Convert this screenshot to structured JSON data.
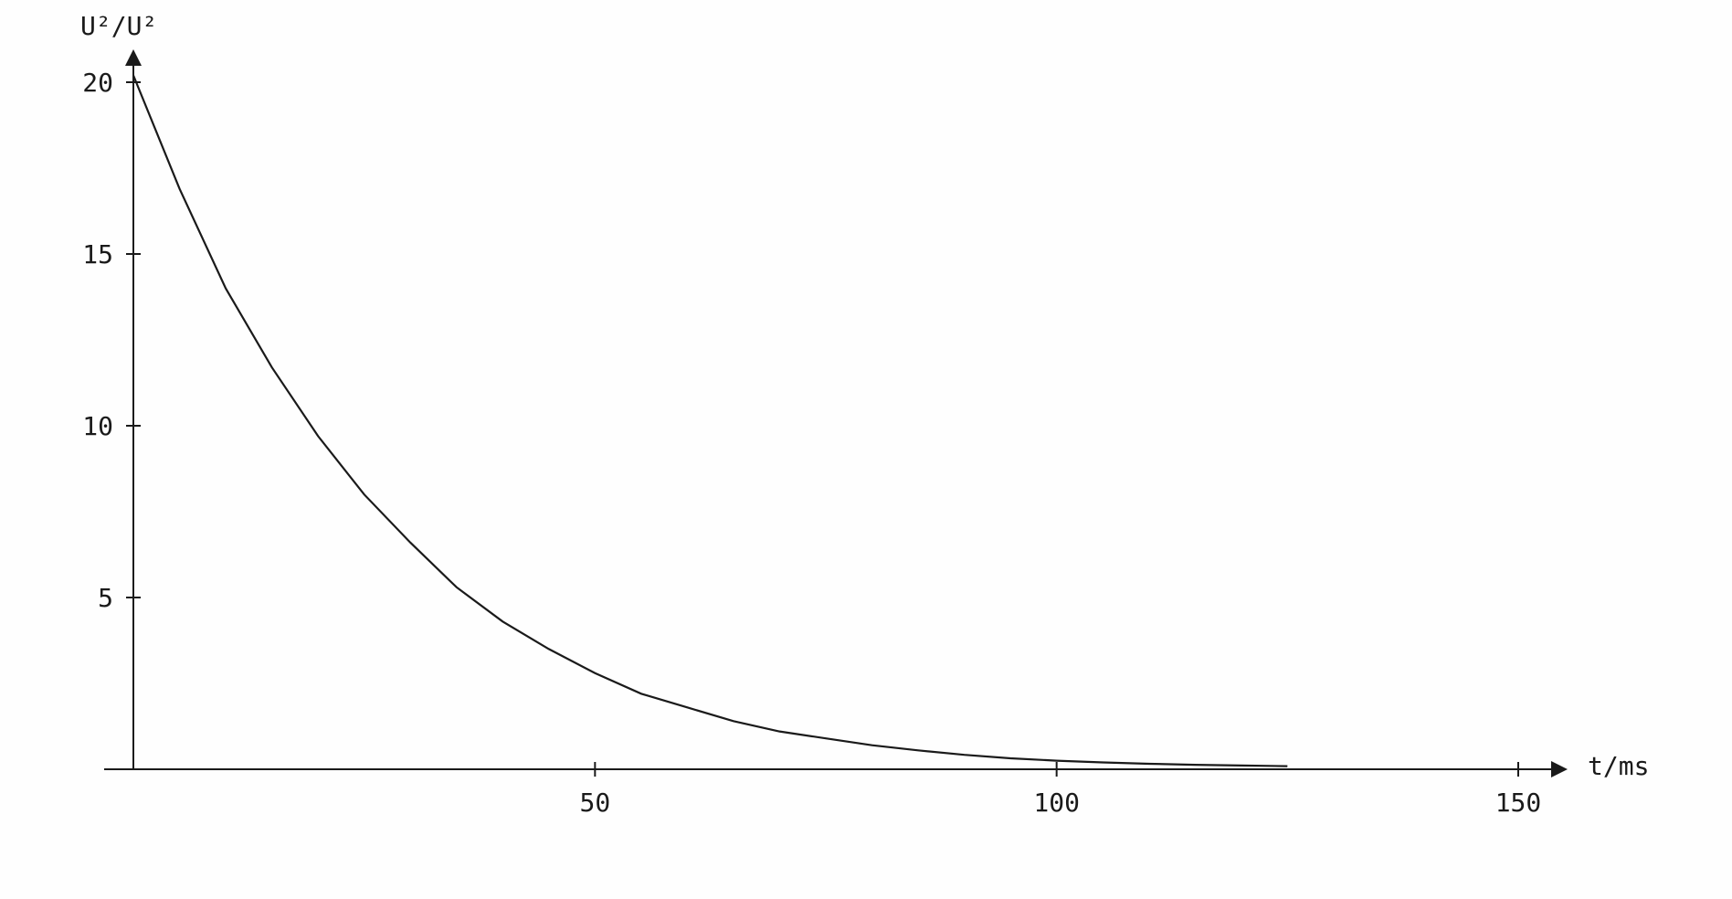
{
  "chart_data": {
    "type": "line",
    "title": "",
    "xlabel": "t/ms",
    "ylabel": "U²/U²",
    "xlim": [
      0,
      150
    ],
    "ylim": [
      0,
      20
    ],
    "x_ticks": [
      {
        "value": 50,
        "label": "50"
      },
      {
        "value": 100,
        "label": "100"
      },
      {
        "value": 150,
        "label": "150"
      }
    ],
    "y_ticks": [
      {
        "value": 5,
        "label": "5"
      },
      {
        "value": 10,
        "label": "10"
      },
      {
        "value": 15,
        "label": "15"
      },
      {
        "value": 20,
        "label": "20"
      }
    ],
    "grid": false,
    "legend": "none",
    "colors": {
      "line": "#1a1a1a",
      "background": "#fefefe"
    },
    "series": [
      {
        "x": [
          0,
          5,
          10,
          15,
          20,
          25,
          30,
          35,
          40,
          45,
          50,
          55,
          60,
          65,
          70,
          75,
          80,
          85,
          90,
          95,
          100,
          105,
          110,
          115,
          120,
          125
        ],
        "y": [
          20.2,
          16.9,
          14.0,
          11.7,
          9.7,
          8.0,
          6.6,
          5.3,
          4.3,
          3.5,
          2.8,
          2.2,
          1.8,
          1.4,
          1.1,
          0.9,
          0.7,
          0.55,
          0.42,
          0.32,
          0.25,
          0.2,
          0.16,
          0.13,
          0.11,
          0.09
        ]
      }
    ]
  }
}
